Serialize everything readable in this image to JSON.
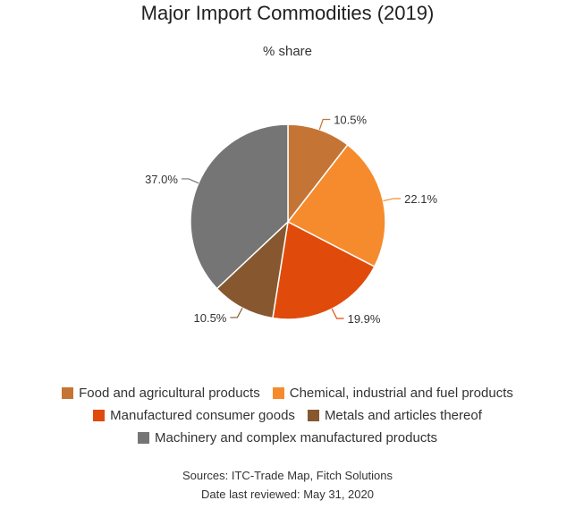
{
  "chart_data": {
    "type": "pie",
    "title": "Major Import Commodities (2019)",
    "subtitle": "% share",
    "unit": "%",
    "slices": [
      {
        "label": "Food and agricultural products",
        "value": 10.5,
        "display": "10.5%",
        "color": "#c47535"
      },
      {
        "label": "Chemical, industrial and fuel products",
        "value": 22.1,
        "display": "22.1%",
        "color": "#f68b2d"
      },
      {
        "label": "Manufactured consumer goods",
        "value": 19.9,
        "display": "19.9%",
        "color": "#e04b0b"
      },
      {
        "label": "Metals and articles thereof",
        "value": 10.5,
        "display": "10.5%",
        "color": "#87582f"
      },
      {
        "label": "Machinery and complex manufactured products",
        "value": 37.0,
        "display": "37.0%",
        "color": "#757575"
      }
    ],
    "legend_position": "bottom"
  },
  "footer": {
    "sources": "Sources: ITC-Trade Map, Fitch Solutions",
    "reviewed": "Date last reviewed: May 31, 2020"
  }
}
